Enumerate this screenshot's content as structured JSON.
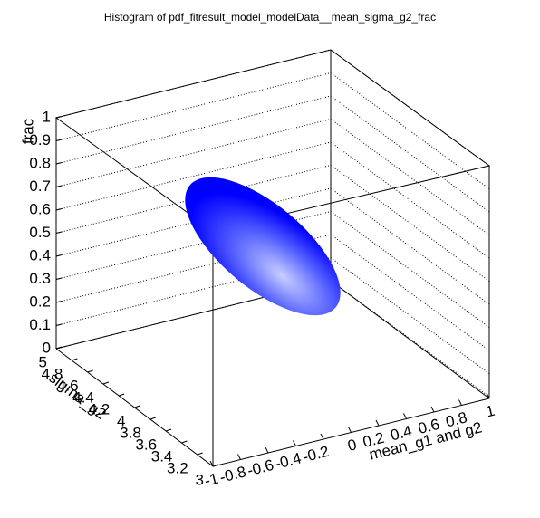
{
  "chart_data": {
    "type": "surface3d",
    "title": "Histogram of pdf_fitresult_model_modelData__mean_sigma_g2_frac",
    "xlabel": "mean_g1 and g2",
    "ylabel": "sigma_g2",
    "zlabel": "frac",
    "xlim": [
      -1,
      1
    ],
    "xticks": [
      -1,
      -0.8,
      -0.6,
      -0.4,
      -0.2,
      0,
      0.2,
      0.4,
      0.6,
      0.8,
      1
    ],
    "ylim": [
      3,
      5
    ],
    "yticks": [
      3,
      3.2,
      3.4,
      3.6,
      3.8,
      4,
      4.2,
      4.4,
      4.6,
      4.8,
      5
    ],
    "zlim": [
      0,
      1
    ],
    "zticks": [
      0,
      0.1,
      0.2,
      0.3,
      0.4,
      0.5,
      0.6,
      0.7,
      0.8,
      0.9,
      1
    ],
    "grid": true,
    "color": "#0000ff"
  }
}
